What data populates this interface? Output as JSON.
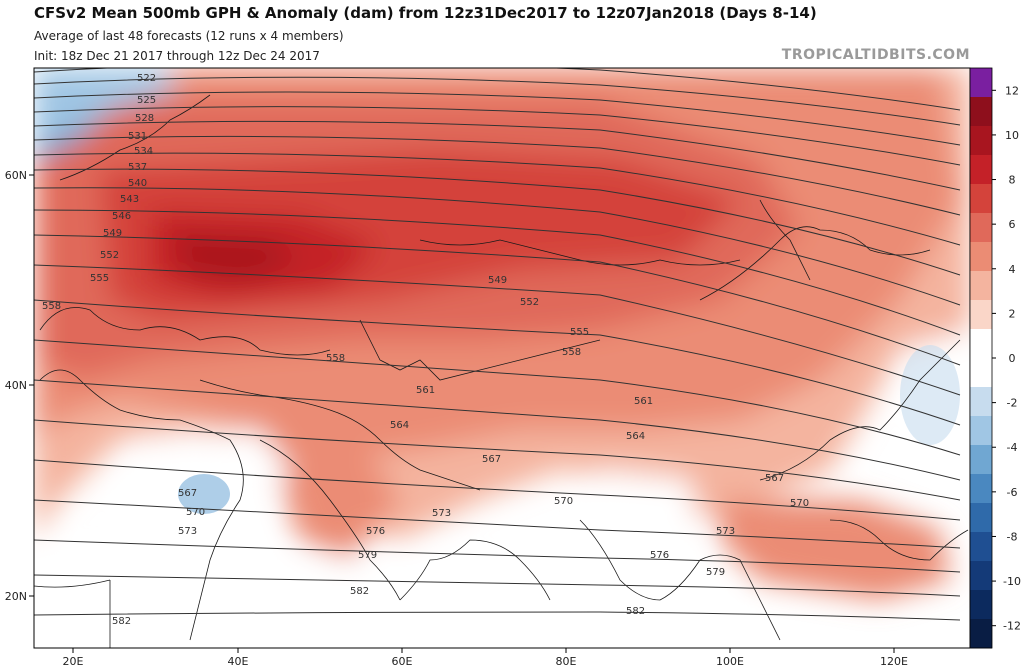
{
  "header": {
    "title": "CFSv2 Mean 500mb GPH & Anomaly (dam) from 12z31Dec2017 to 12z07Jan2018 (Days 8-14)",
    "subtitle": "Average of last 48 forecasts (12 runs x 4 members)",
    "init": "Init: 18z Dec 21 2017 through 12z Dec 24 2017",
    "credit": "TROPICALTIDBITS.COM"
  },
  "axes": {
    "lon_labels": [
      "20E",
      "40E",
      "60E",
      "80E",
      "100E",
      "120E"
    ],
    "lat_labels": [
      "60N",
      "40N",
      "20N"
    ]
  },
  "colorbar": {
    "ticks": [
      "12",
      "10",
      "8",
      "6",
      "4",
      "2",
      "0",
      "-2",
      "-4",
      "-6",
      "-8",
      "-10",
      "-12"
    ],
    "colors": [
      "#7a1fa0",
      "#8e0f1c",
      "#a8151f",
      "#c42128",
      "#d4433b",
      "#e0695a",
      "#eb8c74",
      "#f4b49f",
      "#fad6c8",
      "#ffffff",
      "#ffffff",
      "#c7dcee",
      "#a0c6e4",
      "#70a7d2",
      "#4a88c0",
      "#2f6aaa",
      "#1f4f92",
      "#143a78",
      "#0c2a5e",
      "#091d44"
    ]
  },
  "contours": [
    {
      "label": "522",
      "color": "#333333"
    },
    {
      "label": "525",
      "color": "#333333"
    },
    {
      "label": "528",
      "color": "#333333"
    },
    {
      "label": "531",
      "color": "#333333"
    },
    {
      "label": "534",
      "color": "#333333"
    },
    {
      "label": "537",
      "color": "#333333"
    },
    {
      "label": "540",
      "color": "#333333"
    },
    {
      "label": "543",
      "color": "#333333"
    },
    {
      "label": "546",
      "color": "#333333"
    },
    {
      "label": "549",
      "color": "#333333"
    },
    {
      "label": "552",
      "color": "#333333"
    },
    {
      "label": "555",
      "color": "#333333"
    },
    {
      "label": "558",
      "color": "#333333"
    },
    {
      "label": "561",
      "color": "#333333"
    },
    {
      "label": "564",
      "color": "#333333"
    },
    {
      "label": "567",
      "color": "#333333"
    },
    {
      "label": "570",
      "color": "#333333"
    },
    {
      "label": "573",
      "color": "#333333"
    },
    {
      "label": "576",
      "color": "#333333"
    },
    {
      "label": "579",
      "color": "#333333"
    },
    {
      "label": "582",
      "color": "#333333"
    }
  ]
}
